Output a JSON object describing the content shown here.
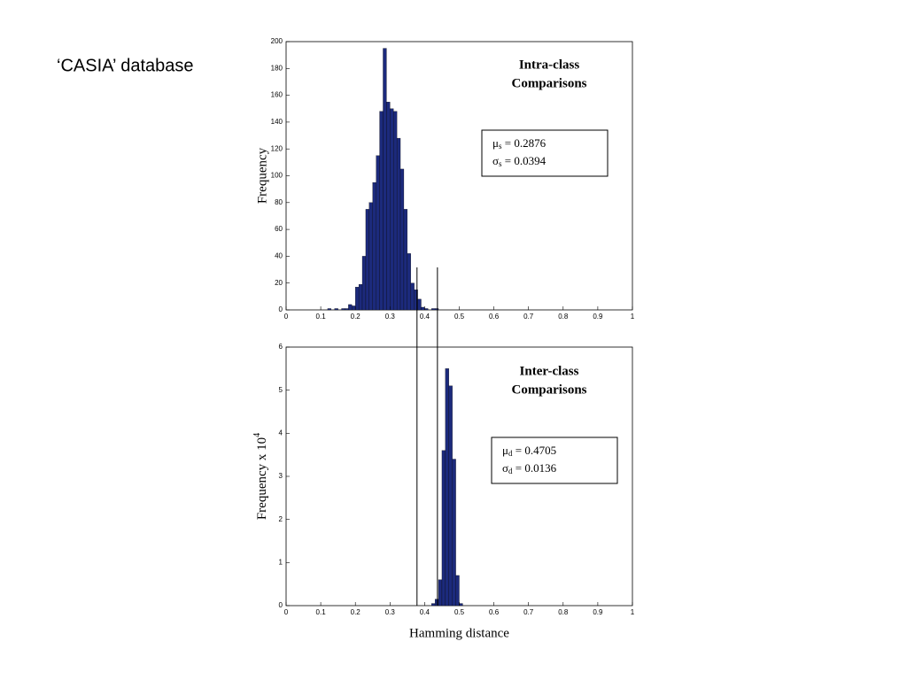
{
  "title": "‘CASIA’ database",
  "separation_lines": [
    0.378,
    0.437
  ],
  "chart_data": [
    {
      "type": "histogram",
      "bins": [
        0.12,
        0.13,
        0.14,
        0.15,
        0.16,
        0.17,
        0.18,
        0.19,
        0.2,
        0.21,
        0.22,
        0.23,
        0.24,
        0.25,
        0.26,
        0.27,
        0.28,
        0.29,
        0.3,
        0.31,
        0.32,
        0.33,
        0.34,
        0.35,
        0.36,
        0.37,
        0.38,
        0.39,
        0.4,
        0.41,
        0.42,
        0.43,
        0.44
      ],
      "values": [
        1,
        0,
        1,
        0,
        1,
        1,
        4,
        3,
        17,
        19,
        40,
        75,
        80,
        95,
        115,
        148,
        195,
        155,
        150,
        148,
        128,
        105,
        75,
        42,
        20,
        15,
        8,
        2,
        1,
        0,
        1,
        1
      ],
      "color": "#1c2a7c",
      "xlim": [
        0,
        1
      ],
      "xticks": [
        0,
        0.1,
        0.2,
        0.3,
        0.4,
        0.5,
        0.6,
        0.7,
        0.8,
        0.9,
        1
      ],
      "ylim": [
        0,
        200
      ],
      "yticks": [
        0,
        20,
        40,
        60,
        80,
        100,
        120,
        140,
        160,
        180,
        200
      ],
      "y_label": "Frequency",
      "annotation": [
        "Intra-class",
        "Comparisons"
      ],
      "stats": [
        {
          "symbol": "μ",
          "sub": "s",
          "text": " = 0.2876"
        },
        {
          "symbol": "σ",
          "sub": "s",
          "text": " = 0.0394"
        }
      ]
    },
    {
      "type": "histogram",
      "bins": [
        0.42,
        0.43,
        0.44,
        0.45,
        0.46,
        0.47,
        0.48,
        0.49,
        0.5,
        0.51
      ],
      "values": [
        0.05,
        0.15,
        0.6,
        3.6,
        5.5,
        5.1,
        3.4,
        0.7,
        0.05
      ],
      "color": "#1c2a7c",
      "xlim": [
        0,
        1
      ],
      "xticks": [
        0,
        0.1,
        0.2,
        0.3,
        0.4,
        0.5,
        0.6,
        0.7,
        0.8,
        0.9,
        1
      ],
      "ylim": [
        0,
        6
      ],
      "yticks": [
        0,
        1,
        2,
        3,
        4,
        5,
        6
      ],
      "y_label": {
        "text": "Frequency x 10",
        "sup": "4"
      },
      "x_label": "Hamming distance",
      "annotation": [
        "Inter-class",
        "Comparisons"
      ],
      "stats": [
        {
          "symbol": "μ",
          "sub": "d",
          "text": " = 0.4705"
        },
        {
          "symbol": "σ",
          "sub": "d",
          "text": " = 0.0136"
        }
      ]
    }
  ]
}
